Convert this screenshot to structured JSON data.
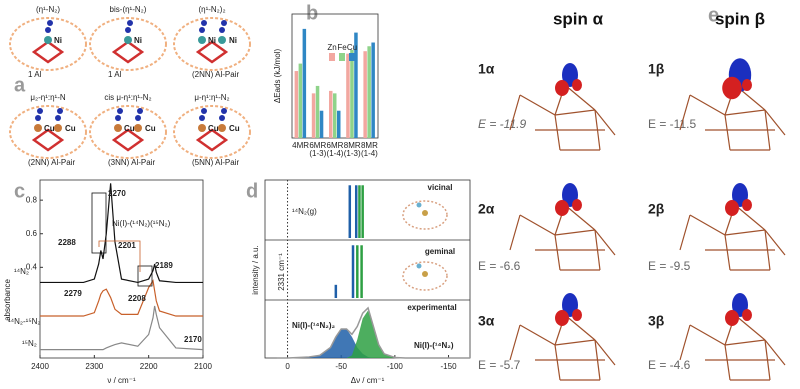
{
  "figure": {
    "panel_letters": [
      "a",
      "b",
      "c",
      "d",
      "e"
    ],
    "a": {
      "structures": [
        {
          "title": "(η¹-N₂)",
          "site": "1 Al",
          "atoms": [
            "Ni"
          ]
        },
        {
          "title": "bis-(η¹-N₂)",
          "site": "1 Al",
          "atoms": [
            "Ni"
          ]
        },
        {
          "title": "(η¹-N₂)₂",
          "site": "(2NN) Al-Pair",
          "atoms": [
            "Ni",
            "Ni"
          ]
        },
        {
          "title": "μ₂-η¹:η¹-N",
          "site": "(2NN) Al-Pair",
          "atoms": [
            "Cu",
            "Cu"
          ]
        },
        {
          "title": "cis μ-η¹:η¹-N₂",
          "site": "(3NN) Al-Pair",
          "atoms": [
            "Cu",
            "Cu"
          ]
        },
        {
          "title": "μ-η¹:η¹-N₂",
          "site": "(5NN) Al-Pair",
          "atoms": [
            "Cu",
            "Cu"
          ]
        }
      ]
    },
    "e": {
      "columns": [
        {
          "title": "spin α",
          "color": "#2a9fb0",
          "rows": [
            {
              "label": "1α",
              "energy": "E = -11.9"
            },
            {
              "label": "2α",
              "energy": "E = -6.6"
            },
            {
              "label": "3α",
              "energy": "E = -5.7"
            }
          ]
        },
        {
          "title": "spin β",
          "color": "#3aa845",
          "rows": [
            {
              "label": "1β",
              "energy": "E = -11.5"
            },
            {
              "label": "2β",
              "energy": "E = -9.5"
            },
            {
              "label": "3β",
              "energy": "E = -4.6"
            }
          ]
        }
      ]
    }
  },
  "chart_data": [
    {
      "type": "bar",
      "y_label": "ΔEads (kJ/mol)",
      "categories": [
        "4MR",
        "6MR (1-3)",
        "6MR (1-4)",
        "8MR (1-3)",
        "8MR (1-4)"
      ],
      "series": [
        {
          "name": "Zn",
          "color": "#f2a7a0",
          "values": [
            54,
            36,
            38,
            68,
            70
          ]
        },
        {
          "name": "Fe",
          "color": "#8fd38a",
          "values": [
            60,
            42,
            36,
            71,
            74
          ]
        },
        {
          "name": "Cu",
          "color": "#2f87c4",
          "values": [
            88,
            22,
            22,
            85,
            77
          ]
        }
      ],
      "ylim": [
        0,
        100
      ]
    },
    {
      "type": "line",
      "x_label": "ν / cm⁻¹",
      "y_label": "absorbance",
      "x": [
        2400,
        2320,
        2300,
        2292,
        2288,
        2284,
        2278,
        2270,
        2262,
        2250,
        2220,
        2200,
        2192,
        2189,
        2186,
        2180,
        2150,
        2100
      ],
      "series": [
        {
          "name": "¹⁴N₂",
          "color": "#111111",
          "values": [
            0.31,
            0.31,
            0.33,
            0.42,
            0.5,
            0.45,
            0.6,
            0.9,
            0.55,
            0.33,
            0.31,
            0.33,
            0.38,
            0.42,
            0.37,
            0.32,
            0.31,
            0.31
          ]
        },
        {
          "name": "¹⁴N₂-¹⁵N₂",
          "color": "#c8602a",
          "values": [
            0.11,
            0.11,
            0.13,
            0.2,
            0.24,
            0.26,
            0.27,
            0.22,
            0.15,
            0.12,
            0.12,
            0.28,
            0.32,
            0.26,
            0.2,
            0.14,
            0.11,
            0.11
          ]
        },
        {
          "name": "¹⁵N₂",
          "color": "#888888",
          "values": [
            -0.09,
            -0.09,
            -0.09,
            -0.09,
            -0.09,
            -0.09,
            -0.08,
            -0.07,
            -0.06,
            -0.05,
            -0.07,
            0.0,
            0.1,
            0.17,
            0.12,
            0.04,
            -0.08,
            -0.09
          ]
        }
      ],
      "xlim": [
        2400,
        2100
      ],
      "xticks": [
        2400,
        2300,
        2200,
        2100
      ],
      "ylim": [
        -0.14,
        0.92
      ],
      "yticks": [
        0.4,
        0.6,
        0.8
      ],
      "annotations": [
        "2270",
        "2288",
        "Ni(I)-(¹⁴N₂)(¹⁵N₂)",
        "2201",
        "2279",
        "2208",
        "2189",
        "2170"
      ]
    },
    {
      "type": "stick",
      "x_label": "Δν / cm⁻¹",
      "y_label": "intensity / a.u.",
      "xlim": [
        21,
        -170
      ],
      "xticks": [
        0,
        -50,
        -100,
        -150
      ],
      "ylim": [
        0,
        1.1
      ],
      "series": [
        {
          "name": "vicinal",
          "color": "#1f5fa8",
          "x": [
            -58,
            -64,
            -67,
            -70
          ],
          "values": [
            1,
            1,
            1,
            1
          ],
          "colors": [
            "#1f5fa8",
            "#1f5fa8",
            "#2ea043",
            "#2ea043"
          ]
        },
        {
          "name": "geminal",
          "color": "#1f5fa8",
          "x": [
            -45,
            -61,
            -65,
            -69
          ],
          "values": [
            0.25,
            1,
            1,
            1
          ],
          "colors": [
            "#1f5fa8",
            "#1f5fa8",
            "#2ea043",
            "#2ea043"
          ]
        },
        {
          "name": "experimental",
          "color": "#999999",
          "x": [
            10,
            0,
            -10,
            -20,
            -30,
            -40,
            -45,
            -50,
            -55,
            -60,
            -65,
            -70,
            -75,
            -80,
            -85,
            -90,
            -100,
            -110,
            -130,
            -170
          ],
          "values": [
            0,
            0,
            0.01,
            0.02,
            0.05,
            0.2,
            0.4,
            0.55,
            0.55,
            0.45,
            0.6,
            0.85,
            0.95,
            0.6,
            0.25,
            0.08,
            0.01,
            0,
            0,
            0
          ]
        }
      ],
      "components": [
        {
          "name": "Ni(I)-(¹⁴N₂)₂",
          "color": "#1f5fa8",
          "values": [
            0,
            0,
            0,
            0.02,
            0.05,
            0.2,
            0.4,
            0.55,
            0.55,
            0.4,
            0.2,
            0.08,
            0.02,
            0,
            0,
            0,
            0,
            0,
            0,
            0
          ]
        },
        {
          "name": "Ni(I)-(¹⁴N₂)",
          "color": "#2ea043",
          "values": [
            0,
            0,
            0,
            0,
            0,
            0,
            0,
            0,
            0,
            0.05,
            0.35,
            0.75,
            0.9,
            0.6,
            0.25,
            0.08,
            0.01,
            0,
            0,
            0
          ]
        }
      ],
      "annotations": [
        "¹⁴N₂(g)",
        "2331 cm⁻¹"
      ]
    }
  ]
}
